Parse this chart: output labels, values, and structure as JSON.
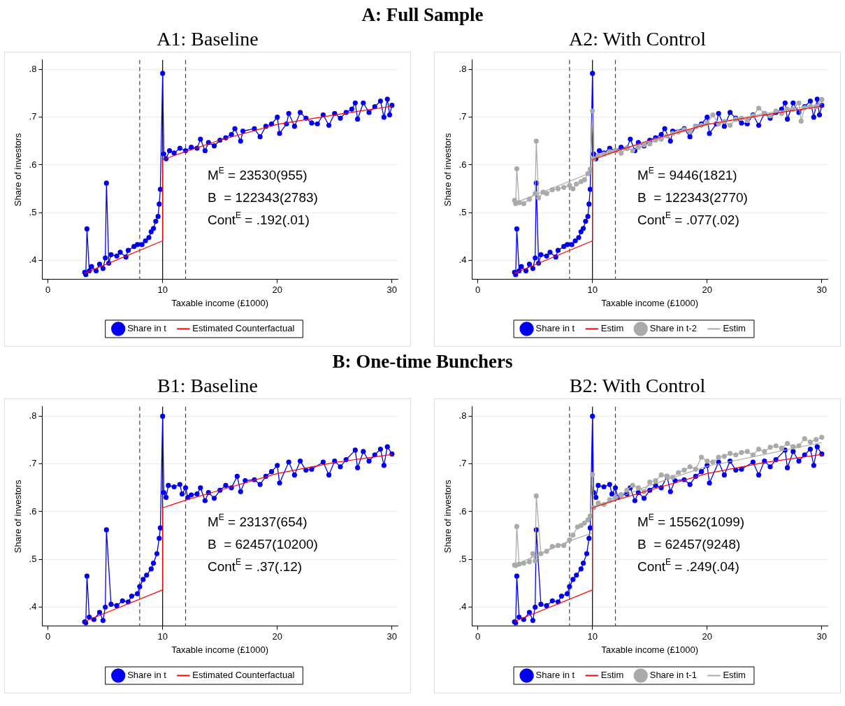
{
  "chart_data": [
    {
      "type": "line",
      "subtitle": "A: Full Sample",
      "title": "A1: Baseline",
      "xlabel": "Taxable income (£1000)",
      "ylabel": "Share of investors",
      "xlim": [
        -0.5,
        30.5
      ],
      "ylim": [
        0.36,
        0.82
      ],
      "xticks": [
        0,
        10,
        20,
        30
      ],
      "yticks": [
        {
          "value": 0.4,
          "label": ".4"
        },
        {
          "value": 0.5,
          "label": ".5"
        },
        {
          "value": 0.6,
          "label": ".6"
        },
        {
          "value": 0.7,
          "label": ".7"
        },
        {
          "value": 0.8,
          "label": ".8"
        }
      ],
      "grid": "y",
      "legend": "bottom",
      "annotations": [
        "M$^{E}$ = 23530(955)",
        "B  = 122343(2783)",
        "Cont$^{E}$ = .192(.01)"
      ],
      "ref_lines": [
        {
          "axis": "x",
          "value": 8,
          "line_style": "dashed",
          "color": "#444444"
        },
        {
          "axis": "x",
          "value": 10,
          "line_style": "solid",
          "color": "#000000"
        },
        {
          "axis": "x",
          "value": 12,
          "line_style": "dashed",
          "color": "#444444"
        }
      ],
      "series": [
        {
          "name": "Share in t",
          "color": "#0000ee",
          "marker": "circle",
          "x": [
            3.2,
            3.3,
            3.4,
            3.6,
            3.8,
            4.2,
            4.5,
            4.8,
            5.0,
            5.1,
            5.3,
            5.5,
            6.0,
            6.3,
            6.8,
            7.0,
            7.5,
            7.8,
            8.2,
            8.5,
            8.8,
            9.0,
            9.2,
            9.4,
            9.6,
            9.7,
            9.8,
            10.0,
            10.1,
            10.3,
            10.6,
            11,
            11.5,
            12,
            12.5,
            13,
            13.3,
            13.7,
            14,
            14.5,
            15,
            15.5,
            16,
            16.3,
            16.8,
            17,
            18,
            18.5,
            19,
            19.5,
            20,
            20.2,
            20.8,
            21,
            21.5,
            22,
            22.5,
            23,
            23.5,
            24,
            24.5,
            25,
            25.5,
            26,
            26.5,
            26.8,
            27,
            27.5,
            28,
            28.5,
            29,
            29.3,
            29.6,
            29.8,
            30
          ],
          "values": [
            0.375,
            0.37,
            0.466,
            0.378,
            0.387,
            0.378,
            0.392,
            0.383,
            0.405,
            0.562,
            0.394,
            0.412,
            0.409,
            0.417,
            0.407,
            0.421,
            0.429,
            0.433,
            0.433,
            0.441,
            0.448,
            0.46,
            0.467,
            0.482,
            0.492,
            0.518,
            0.549,
            0.792,
            0.623,
            0.613,
            0.63,
            0.625,
            0.635,
            0.63,
            0.637,
            0.635,
            0.654,
            0.63,
            0.647,
            0.64,
            0.652,
            0.657,
            0.664,
            0.676,
            0.65,
            0.671,
            0.676,
            0.659,
            0.681,
            0.686,
            0.7,
            0.666,
            0.686,
            0.708,
            0.681,
            0.71,
            0.698,
            0.688,
            0.686,
            0.705,
            0.683,
            0.708,
            0.698,
            0.71,
            0.717,
            0.73,
            0.696,
            0.73,
            0.71,
            0.722,
            0.734,
            0.7,
            0.738,
            0.705,
            0.725
          ]
        },
        {
          "name": "Estimated Counterfactual",
          "color": "#ff0000",
          "marker": "none",
          "x": [
            3.2,
            10,
            10,
            12,
            15,
            20,
            25,
            30
          ],
          "values": [
            0.373,
            0.441,
            0.611,
            0.628,
            0.652,
            0.685,
            0.705,
            0.723
          ]
        }
      ]
    },
    {
      "type": "line",
      "title": "A2: With Control",
      "xlabel": "Taxable income (£1000)",
      "ylabel": "Share of investors",
      "xlim": [
        -0.5,
        30.5
      ],
      "ylim": [
        0.36,
        0.82
      ],
      "xticks": [
        0,
        10,
        20,
        30
      ],
      "yticks": [
        {
          "value": 0.4,
          "label": ".4"
        },
        {
          "value": 0.5,
          "label": ".5"
        },
        {
          "value": 0.6,
          "label": ".6"
        },
        {
          "value": 0.7,
          "label": ".7"
        },
        {
          "value": 0.8,
          "label": ".8"
        }
      ],
      "grid": "y",
      "legend": "bottom",
      "annotations": [
        "M$^{E}$ = 9446(1821)",
        "B  = 122343(2770)",
        "Cont$^{E}$ = .077(.02)"
      ],
      "ref_lines": [
        {
          "axis": "x",
          "value": 8,
          "line_style": "dashed",
          "color": "#444444"
        },
        {
          "axis": "x",
          "value": 10,
          "line_style": "solid",
          "color": "#000000"
        },
        {
          "axis": "x",
          "value": 12,
          "line_style": "dashed",
          "color": "#444444"
        }
      ],
      "series": [
        {
          "name": "Share in t",
          "color": "#0000ee",
          "marker": "circle",
          "x": [
            3.2,
            3.3,
            3.4,
            3.6,
            3.8,
            4.2,
            4.5,
            4.8,
            5.0,
            5.1,
            5.3,
            5.5,
            6.0,
            6.3,
            6.8,
            7.0,
            7.5,
            7.8,
            8.2,
            8.5,
            8.8,
            9.0,
            9.2,
            9.4,
            9.6,
            9.7,
            9.8,
            10.0,
            10.1,
            10.3,
            10.6,
            11,
            11.5,
            12,
            12.5,
            13,
            13.3,
            13.7,
            14,
            14.5,
            15,
            15.5,
            16,
            16.3,
            16.8,
            17,
            18,
            18.5,
            19,
            19.5,
            20,
            20.2,
            20.8,
            21,
            21.5,
            22,
            22.5,
            23,
            23.5,
            24,
            24.5,
            25,
            25.5,
            26,
            26.5,
            26.8,
            27,
            27.5,
            28,
            28.5,
            29,
            29.3,
            29.6,
            29.8,
            30
          ],
          "values": [
            0.375,
            0.37,
            0.466,
            0.378,
            0.387,
            0.378,
            0.392,
            0.383,
            0.405,
            0.562,
            0.394,
            0.412,
            0.409,
            0.417,
            0.407,
            0.421,
            0.429,
            0.433,
            0.433,
            0.441,
            0.448,
            0.46,
            0.467,
            0.482,
            0.492,
            0.518,
            0.549,
            0.792,
            0.623,
            0.613,
            0.63,
            0.625,
            0.635,
            0.63,
            0.637,
            0.635,
            0.654,
            0.63,
            0.647,
            0.64,
            0.652,
            0.657,
            0.664,
            0.676,
            0.65,
            0.671,
            0.676,
            0.659,
            0.681,
            0.686,
            0.7,
            0.666,
            0.686,
            0.708,
            0.681,
            0.71,
            0.698,
            0.688,
            0.686,
            0.705,
            0.683,
            0.708,
            0.698,
            0.71,
            0.717,
            0.73,
            0.696,
            0.73,
            0.71,
            0.722,
            0.734,
            0.7,
            0.738,
            0.705,
            0.725
          ]
        },
        {
          "name": "Estim",
          "color": "#ff0000",
          "marker": "none",
          "x": [
            3.2,
            10,
            10,
            12,
            15,
            20,
            25,
            30
          ],
          "values": [
            0.373,
            0.441,
            0.611,
            0.628,
            0.652,
            0.685,
            0.705,
            0.723
          ]
        },
        {
          "name": "Share in t-2",
          "color": "#aaaaaa",
          "marker": "circle",
          "x": [
            3.2,
            3.3,
            3.4,
            3.6,
            4,
            4.5,
            5.0,
            5.1,
            5.3,
            5.7,
            6.0,
            6.5,
            7,
            7.5,
            8,
            8.3,
            8.6,
            9.0,
            9.3,
            9.6,
            9.8,
            10.0,
            10.1,
            10.5,
            11,
            11.5,
            12,
            12.5,
            13,
            13.5,
            14,
            14.5,
            15,
            15.5,
            16,
            16.5,
            17,
            17.5,
            18,
            18.5,
            19,
            19.5,
            20,
            20.5,
            21,
            21.5,
            22,
            22.5,
            23,
            23.5,
            24,
            24.5,
            25,
            25.5,
            26,
            26.5,
            27,
            27.5,
            28,
            28.2,
            28.5,
            29,
            29.5,
            30
          ],
          "values": [
            0.526,
            0.519,
            0.592,
            0.521,
            0.519,
            0.528,
            0.54,
            0.65,
            0.531,
            0.543,
            0.54,
            0.548,
            0.55,
            0.553,
            0.557,
            0.55,
            0.56,
            0.565,
            0.569,
            0.582,
            0.591,
            0.713,
            0.613,
            0.62,
            0.623,
            0.628,
            0.63,
            0.625,
            0.635,
            0.63,
            0.637,
            0.642,
            0.644,
            0.652,
            0.654,
            0.661,
            0.666,
            0.669,
            0.674,
            0.669,
            0.681,
            0.683,
            0.688,
            0.705,
            0.686,
            0.691,
            0.683,
            0.696,
            0.698,
            0.693,
            0.703,
            0.719,
            0.708,
            0.703,
            0.713,
            0.708,
            0.717,
            0.717,
            0.73,
            0.692,
            0.72,
            0.722,
            0.722,
            0.737
          ]
        },
        {
          "name": "Estim",
          "color": "#aaaaaa",
          "marker": "none",
          "x": [
            3.2,
            10,
            10,
            15,
            20,
            25,
            30
          ],
          "values": [
            0.52,
            0.585,
            0.615,
            0.65,
            0.685,
            0.708,
            0.728
          ]
        }
      ]
    },
    {
      "type": "line",
      "subtitle": "B: One-time Bunchers",
      "title": "B1: Baseline",
      "xlabel": "Taxable income (£1000)",
      "ylabel": "Share of investors",
      "xlim": [
        -0.5,
        30.5
      ],
      "ylim": [
        0.36,
        0.82
      ],
      "xticks": [
        0,
        10,
        20,
        30
      ],
      "yticks": [
        {
          "value": 0.4,
          "label": ".4"
        },
        {
          "value": 0.5,
          "label": ".5"
        },
        {
          "value": 0.6,
          "label": ".6"
        },
        {
          "value": 0.7,
          "label": ".7"
        },
        {
          "value": 0.8,
          "label": ".8"
        }
      ],
      "grid": "y",
      "legend": "bottom",
      "annotations": [
        "M$^{E}$ = 23137(654)",
        "B  = 62457(10200)",
        "Cont$^{E}$ = .37(.12)"
      ],
      "ref_lines": [
        {
          "axis": "x",
          "value": 8,
          "line_style": "dashed",
          "color": "#444444"
        },
        {
          "axis": "x",
          "value": 10,
          "line_style": "solid",
          "color": "#000000"
        },
        {
          "axis": "x",
          "value": 12,
          "line_style": "dashed",
          "color": "#444444"
        }
      ],
      "series": [
        {
          "name": "Share in t",
          "color": "#0000ee",
          "marker": "circle",
          "x": [
            3.2,
            3.3,
            3.4,
            3.6,
            4,
            4.5,
            4.8,
            5.0,
            5.1,
            5.5,
            6,
            6.5,
            7,
            7.3,
            7.8,
            8.0,
            8.3,
            8.6,
            9.0,
            9.2,
            9.5,
            9.7,
            9.8,
            10.0,
            10.1,
            10.3,
            10.5,
            11,
            11.5,
            11.7,
            12,
            12.2,
            12.5,
            13,
            13.3,
            13.7,
            14,
            14.5,
            15,
            15.5,
            16,
            16.5,
            16.8,
            17.2,
            18,
            18.5,
            19,
            19.5,
            20,
            20.2,
            21,
            21.5,
            22,
            22.5,
            23,
            24,
            24.5,
            25,
            25.5,
            26,
            26.8,
            27,
            27.5,
            28,
            28.5,
            29,
            29.3,
            29.6,
            30
          ],
          "values": [
            0.369,
            0.367,
            0.465,
            0.379,
            0.374,
            0.389,
            0.372,
            0.4,
            0.562,
            0.406,
            0.403,
            0.413,
            0.411,
            0.423,
            0.428,
            0.443,
            0.458,
            0.467,
            0.48,
            0.492,
            0.512,
            0.544,
            0.566,
            0.8,
            0.64,
            0.63,
            0.655,
            0.652,
            0.657,
            0.637,
            0.65,
            0.63,
            0.635,
            0.637,
            0.65,
            0.623,
            0.64,
            0.628,
            0.645,
            0.655,
            0.65,
            0.674,
            0.642,
            0.665,
            0.667,
            0.657,
            0.674,
            0.684,
            0.697,
            0.66,
            0.704,
            0.677,
            0.706,
            0.687,
            0.689,
            0.704,
            0.677,
            0.706,
            0.694,
            0.709,
            0.729,
            0.692,
            0.726,
            0.706,
            0.719,
            0.731,
            0.697,
            0.736,
            0.721
          ]
        },
        {
          "name": "Estimated Counterfactual",
          "color": "#ff0000",
          "marker": "none",
          "x": [
            3.2,
            10,
            10,
            12,
            15,
            20,
            25,
            30
          ],
          "values": [
            0.37,
            0.436,
            0.608,
            0.624,
            0.645,
            0.68,
            0.703,
            0.72
          ]
        }
      ]
    },
    {
      "type": "line",
      "title": "B2: With Control",
      "xlabel": "Taxable income (£1000)",
      "ylabel": "Share of investors",
      "xlim": [
        -0.5,
        30.5
      ],
      "ylim": [
        0.36,
        0.82
      ],
      "xticks": [
        0,
        10,
        20,
        30
      ],
      "yticks": [
        {
          "value": 0.4,
          "label": ".4"
        },
        {
          "value": 0.5,
          "label": ".5"
        },
        {
          "value": 0.6,
          "label": ".6"
        },
        {
          "value": 0.7,
          "label": ".7"
        },
        {
          "value": 0.8,
          "label": ".8"
        }
      ],
      "grid": "y",
      "legend": "bottom",
      "annotations": [
        "M$^{E}$ = 15562(1099)",
        "B  = 62457(9248)",
        "Cont$^{E}$ = .249(.04)"
      ],
      "ref_lines": [
        {
          "axis": "x",
          "value": 8,
          "line_style": "dashed",
          "color": "#444444"
        },
        {
          "axis": "x",
          "value": 10,
          "line_style": "solid",
          "color": "#000000"
        },
        {
          "axis": "x",
          "value": 12,
          "line_style": "dashed",
          "color": "#444444"
        }
      ],
      "series": [
        {
          "name": "Share in t",
          "color": "#0000ee",
          "marker": "circle",
          "x": [
            3.2,
            3.3,
            3.4,
            3.6,
            4,
            4.5,
            4.8,
            5.0,
            5.1,
            5.5,
            6,
            6.5,
            7,
            7.3,
            7.8,
            8.0,
            8.3,
            8.6,
            9.0,
            9.2,
            9.5,
            9.7,
            9.8,
            10.0,
            10.1,
            10.3,
            10.5,
            11,
            11.5,
            11.7,
            12,
            12.2,
            12.5,
            13,
            13.3,
            13.7,
            14,
            14.5,
            15,
            15.5,
            16,
            16.5,
            16.8,
            17.2,
            18,
            18.5,
            19,
            19.5,
            20,
            20.2,
            21,
            21.5,
            22,
            22.5,
            23,
            24,
            24.5,
            25,
            25.5,
            26,
            26.8,
            27,
            27.5,
            28,
            28.5,
            29,
            29.3,
            29.6,
            30
          ],
          "values": [
            0.369,
            0.367,
            0.465,
            0.379,
            0.374,
            0.389,
            0.372,
            0.4,
            0.562,
            0.406,
            0.403,
            0.413,
            0.411,
            0.423,
            0.428,
            0.443,
            0.458,
            0.467,
            0.48,
            0.492,
            0.512,
            0.544,
            0.566,
            0.8,
            0.64,
            0.63,
            0.655,
            0.652,
            0.657,
            0.637,
            0.65,
            0.63,
            0.635,
            0.637,
            0.65,
            0.623,
            0.64,
            0.628,
            0.645,
            0.655,
            0.65,
            0.674,
            0.642,
            0.665,
            0.667,
            0.657,
            0.674,
            0.684,
            0.697,
            0.66,
            0.704,
            0.677,
            0.706,
            0.687,
            0.689,
            0.704,
            0.677,
            0.706,
            0.694,
            0.709,
            0.729,
            0.692,
            0.726,
            0.706,
            0.719,
            0.731,
            0.697,
            0.736,
            0.721
          ]
        },
        {
          "name": "Estim",
          "color": "#ff0000",
          "marker": "none",
          "x": [
            3.2,
            10,
            10,
            12,
            15,
            20,
            25,
            30
          ],
          "values": [
            0.37,
            0.436,
            0.608,
            0.624,
            0.645,
            0.68,
            0.703,
            0.72
          ]
        },
        {
          "name": "Share in t-1",
          "color": "#aaaaaa",
          "marker": "circle",
          "x": [
            3.2,
            3.3,
            3.4,
            3.6,
            4,
            4.5,
            4.8,
            5.0,
            5.1,
            5.5,
            6,
            6.5,
            7,
            7.5,
            8,
            8.3,
            8.7,
            9.0,
            9.3,
            9.6,
            9.8,
            10.0,
            10.1,
            10.5,
            11,
            11.5,
            12,
            12.5,
            13,
            13.5,
            14,
            14.5,
            15,
            15.5,
            16,
            16.5,
            17,
            17.5,
            18,
            18.5,
            19,
            19.5,
            20,
            20.5,
            21,
            21.5,
            22,
            22.5,
            23,
            23.5,
            24,
            24.5,
            25,
            25.5,
            26,
            26.5,
            27,
            27.5,
            28,
            28.5,
            29,
            29.5,
            30
          ],
          "values": [
            0.488,
            0.487,
            0.569,
            0.49,
            0.492,
            0.495,
            0.512,
            0.497,
            0.633,
            0.512,
            0.517,
            0.527,
            0.529,
            0.529,
            0.541,
            0.551,
            0.568,
            0.571,
            0.576,
            0.583,
            0.591,
            0.678,
            0.608,
            0.618,
            0.615,
            0.625,
            0.63,
            0.635,
            0.645,
            0.655,
            0.65,
            0.642,
            0.662,
            0.665,
            0.677,
            0.674,
            0.672,
            0.682,
            0.687,
            0.694,
            0.689,
            0.714,
            0.706,
            0.704,
            0.714,
            0.716,
            0.722,
            0.719,
            0.724,
            0.726,
            0.719,
            0.731,
            0.726,
            0.735,
            0.738,
            0.733,
            0.743,
            0.736,
            0.738,
            0.753,
            0.746,
            0.751,
            0.756
          ]
        },
        {
          "name": "Estim",
          "color": "#aaaaaa",
          "marker": "none",
          "x": [
            3.2,
            8,
            10,
            10,
            15,
            20,
            25,
            30
          ],
          "values": [
            0.488,
            0.539,
            0.555,
            0.608,
            0.655,
            0.695,
            0.72,
            0.745
          ]
        }
      ]
    }
  ]
}
